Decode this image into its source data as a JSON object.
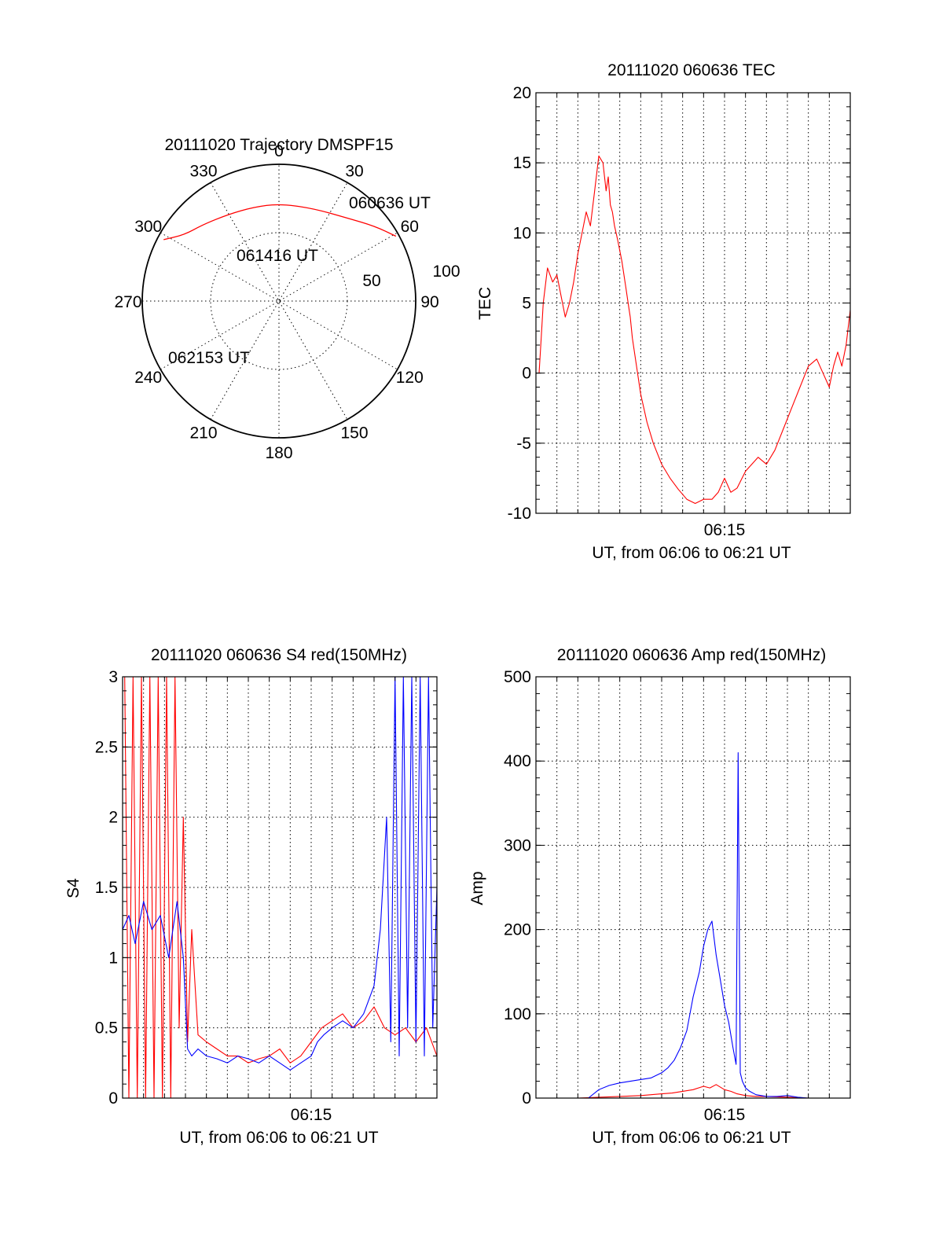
{
  "chart_data": [
    {
      "type": "polar",
      "title": "20111020 Trajectory DMSPF15",
      "azimuth_labels": [
        "0",
        "30",
        "60",
        "90",
        "120",
        "150",
        "180",
        "210",
        "240",
        "270",
        "300",
        "330"
      ],
      "radial_labels": [
        "50",
        "100"
      ],
      "series": [
        {
          "color": "#ff0000",
          "points": [
            [
              61,
              88
            ],
            [
              52,
              80
            ],
            [
              40,
              71
            ],
            [
              20,
              65
            ],
            [
              0,
              64
            ],
            [
              -15,
              64
            ],
            [
              -30,
              66
            ],
            [
              -45,
              71
            ],
            [
              -55,
              76
            ],
            [
              -62,
              86
            ]
          ]
        }
      ],
      "annotations": [
        {
          "text": "060636 UT",
          "az": 61,
          "zen": 88
        },
        {
          "text": "061416 UT",
          "az": 6,
          "zen": 36
        },
        {
          "text": "062153 UT",
          "az": -66,
          "zen": 88
        }
      ]
    },
    {
      "type": "line",
      "title": "20111020 060636 TEC",
      "ylabel": "TEC",
      "xlabel": "UT, from 06:06 to 06:21 UT",
      "xlim": [
        0,
        15
      ],
      "ylim": [
        -10,
        20
      ],
      "yticks": [
        "-10",
        "-5",
        "0",
        "5",
        "10",
        "15",
        "20"
      ],
      "xticks": [
        {
          "t": 9,
          "label": "06:15"
        }
      ],
      "series": [
        {
          "color": "#ff0000",
          "x": [
            0.15,
            0.25,
            0.35,
            0.55,
            0.8,
            1.0,
            1.2,
            1.4,
            1.6,
            1.8,
            2.0,
            2.2,
            2.4,
            2.6,
            2.8,
            3.0,
            3.2,
            3.35,
            3.45,
            3.55,
            3.65,
            3.75,
            3.9,
            4.1,
            4.3,
            4.4,
            4.5,
            4.6,
            4.8,
            5.0,
            5.3,
            5.6,
            6.0,
            6.4,
            6.8,
            7.2,
            7.6,
            8.0,
            8.4,
            8.7,
            9.0,
            9.3,
            9.6,
            10.0,
            10.3,
            10.6,
            11.0,
            11.4,
            11.8,
            12.2,
            12.6,
            13.0,
            13.4,
            13.7,
            14.0,
            14.2,
            14.4,
            14.6,
            14.8,
            15.0
          ],
          "y": [
            0.0,
            2.5,
            5.0,
            7.5,
            6.5,
            7.0,
            5.5,
            4.0,
            5.0,
            6.5,
            8.5,
            10.0,
            11.5,
            10.5,
            13.0,
            15.5,
            15.0,
            13.0,
            14.0,
            12.0,
            11.5,
            10.5,
            9.5,
            8.0,
            6.0,
            5.0,
            4.0,
            2.5,
            0.5,
            -1.5,
            -3.5,
            -5.0,
            -6.5,
            -7.5,
            -8.3,
            -9.0,
            -9.3,
            -9.0,
            -9.0,
            -8.5,
            -7.5,
            -8.5,
            -8.2,
            -7.0,
            -6.5,
            -6.0,
            -6.5,
            -5.5,
            -4.0,
            -2.5,
            -1.0,
            0.5,
            1.0,
            0.0,
            -1.0,
            0.5,
            1.5,
            0.5,
            2.0,
            4.5
          ]
        }
      ]
    },
    {
      "type": "line",
      "title": "20111020 060636 S4 red(150MHz)",
      "ylabel": "S4",
      "xlabel": "UT, from 06:06 to 06:21 UT",
      "xlim": [
        0,
        15
      ],
      "ylim": [
        0,
        3
      ],
      "yticks": [
        "0",
        "0.5",
        "1",
        "1.5",
        "2",
        "2.5",
        "3"
      ],
      "xticks": [
        {
          "t": 9,
          "label": "06:15"
        }
      ],
      "series": [
        {
          "color": "#ff0000",
          "x": [
            0.1,
            0.3,
            0.5,
            0.7,
            0.9,
            1.1,
            1.3,
            1.5,
            1.7,
            1.9,
            2.1,
            2.3,
            2.5,
            2.7,
            2.9,
            3.1,
            3.3,
            3.6,
            4.0,
            4.5,
            5.0,
            5.5,
            6.0,
            6.5,
            7.0,
            7.5,
            8.0,
            8.5,
            9.0,
            9.5,
            10.0,
            10.5,
            11.0,
            11.5,
            12.0,
            12.5,
            13.0,
            13.5,
            14.0,
            14.5,
            15.0
          ],
          "y": [
            3.0,
            0.0,
            3.0,
            0.0,
            3.0,
            0.0,
            3.0,
            0.0,
            3.0,
            0.0,
            3.0,
            0.0,
            3.0,
            0.5,
            2.0,
            0.4,
            1.2,
            0.45,
            0.4,
            0.35,
            0.3,
            0.3,
            0.25,
            0.28,
            0.3,
            0.35,
            0.25,
            0.3,
            0.4,
            0.5,
            0.55,
            0.6,
            0.5,
            0.55,
            0.65,
            0.5,
            0.45,
            0.5,
            0.4,
            0.5,
            0.3
          ]
        },
        {
          "color": "#0000ff",
          "x": [
            0.0,
            0.3,
            0.6,
            1.0,
            1.4,
            1.8,
            2.2,
            2.6,
            2.9,
            3.1,
            3.3,
            3.6,
            4.0,
            4.5,
            5.0,
            5.5,
            6.0,
            6.5,
            7.0,
            7.5,
            8.0,
            8.5,
            9.0,
            9.3,
            9.6,
            10.0,
            10.5,
            11.0,
            11.5,
            12.0,
            12.3,
            12.6,
            12.8,
            13.0,
            13.2,
            13.4,
            13.6,
            13.8,
            14.0,
            14.2,
            14.4,
            14.6,
            14.8,
            15.0
          ],
          "y": [
            1.2,
            1.3,
            1.1,
            1.4,
            1.2,
            1.3,
            1.0,
            1.4,
            1.0,
            0.35,
            0.3,
            0.35,
            0.3,
            0.28,
            0.25,
            0.3,
            0.28,
            0.25,
            0.3,
            0.25,
            0.2,
            0.25,
            0.3,
            0.4,
            0.45,
            0.5,
            0.55,
            0.5,
            0.6,
            0.8,
            1.2,
            2.0,
            0.4,
            3.0,
            0.3,
            3.0,
            0.5,
            3.0,
            0.4,
            3.0,
            0.3,
            3.0,
            0.5,
            1.5
          ]
        }
      ]
    },
    {
      "type": "line",
      "title": "20111020 060636 Amp red(150MHz)",
      "ylabel": "Amp",
      "xlabel": "UT, from 06:06 to 06:21 UT",
      "xlim": [
        0,
        15
      ],
      "ylim": [
        0,
        500
      ],
      "yticks": [
        "0",
        "100",
        "200",
        "300",
        "400",
        "500"
      ],
      "xticks": [
        {
          "t": 9,
          "label": "06:15"
        }
      ],
      "series": [
        {
          "color": "#ff0000",
          "x": [
            0.0,
            2.0,
            3.0,
            4.0,
            5.0,
            6.0,
            6.5,
            7.0,
            7.5,
            8.0,
            8.3,
            8.6,
            9.0,
            9.3,
            9.6,
            10.0,
            10.5,
            11.0,
            12.0,
            13.0,
            15.0
          ],
          "y": [
            0,
            0,
            1,
            2,
            3,
            5,
            6,
            8,
            10,
            14,
            12,
            16,
            10,
            8,
            5,
            3,
            2,
            2,
            1,
            0,
            0
          ]
        },
        {
          "color": "#0000ff",
          "x": [
            0.0,
            2.5,
            3.0,
            3.5,
            4.0,
            4.5,
            5.0,
            5.5,
            6.0,
            6.3,
            6.6,
            6.9,
            7.2,
            7.5,
            7.8,
            8.0,
            8.2,
            8.4,
            8.6,
            8.8,
            9.0,
            9.2,
            9.4,
            9.55,
            9.65,
            9.75,
            9.85,
            10.0,
            10.2,
            10.5,
            11.0,
            11.5,
            12.0,
            12.5,
            13.0,
            15.0
          ],
          "y": [
            0,
            0,
            10,
            15,
            18,
            20,
            22,
            24,
            30,
            36,
            45,
            60,
            80,
            120,
            150,
            180,
            200,
            210,
            170,
            140,
            110,
            90,
            60,
            40,
            410,
            30,
            20,
            12,
            8,
            4,
            2,
            2,
            3,
            1,
            0,
            0
          ]
        }
      ]
    }
  ]
}
